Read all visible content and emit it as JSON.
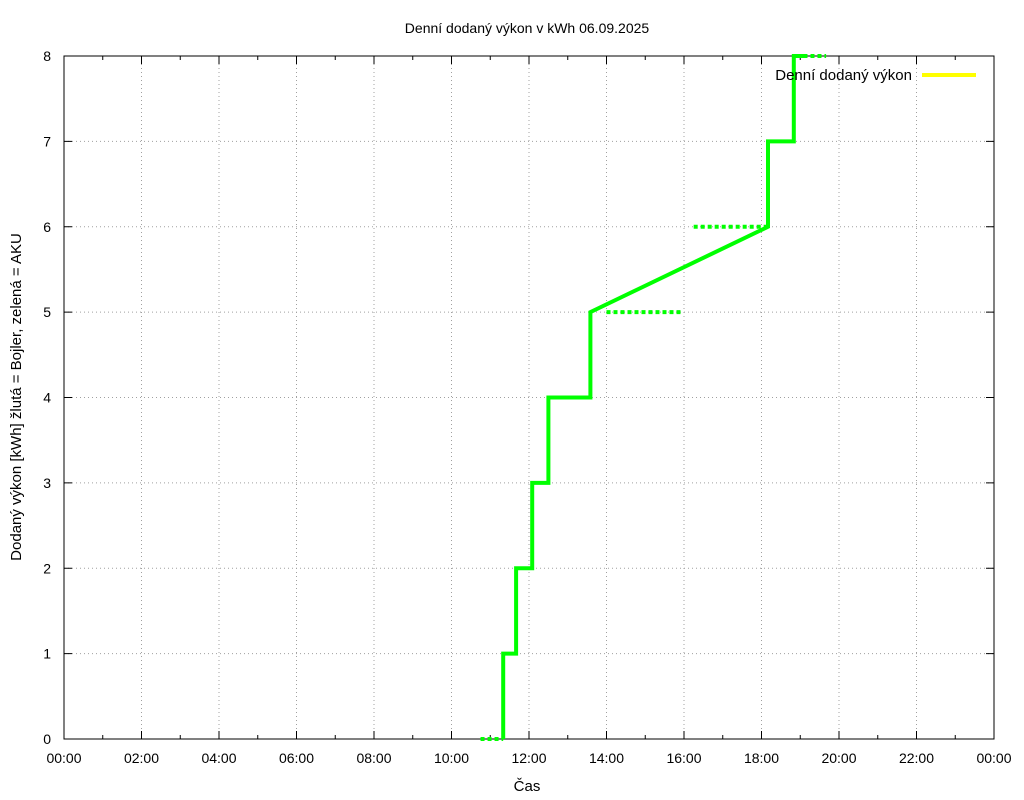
{
  "chart_data": {
    "type": "line",
    "title": "Denní dodaný výkon v kWh 06.09.2025",
    "xlabel": "Čas",
    "ylabel": "Dodaný výkon [kWh]  žlutá = Bojler, zelená = AKU",
    "xlim": [
      "00:00",
      "24:00"
    ],
    "ylim": [
      0,
      8
    ],
    "x_ticks": [
      "00:00",
      "02:00",
      "04:00",
      "06:00",
      "08:00",
      "10:00",
      "12:00",
      "14:00",
      "16:00",
      "18:00",
      "20:00",
      "22:00",
      "00:00"
    ],
    "y_ticks": [
      "0",
      "1",
      "2",
      "3",
      "4",
      "5",
      "6",
      "7",
      "8"
    ],
    "grid": true,
    "legend_position": "top-right",
    "legend": [
      {
        "name": "Denní dodaný výkon",
        "color": "#ffff00"
      }
    ],
    "series": [
      {
        "name": "Denní dodaný výkon",
        "color": "#ffff00",
        "points": []
      },
      {
        "color": "#00ff00",
        "solid_points": [
          [
            "11:20",
            0
          ],
          [
            "11:20",
            1
          ],
          [
            "11:40",
            1
          ],
          [
            "11:40",
            2
          ],
          [
            "12:05",
            2
          ],
          [
            "12:05",
            3
          ],
          [
            "12:30",
            3
          ],
          [
            "12:30",
            4
          ],
          [
            "12:50",
            4
          ],
          [
            "13:35",
            4
          ],
          [
            "13:35",
            5
          ],
          [
            "18:10",
            6
          ],
          [
            "18:10",
            7
          ],
          [
            "18:50",
            7
          ],
          [
            "18:50",
            8
          ],
          [
            "19:05",
            8
          ]
        ],
        "dotted_segments": [
          {
            "from": [
              "10:45",
              0
            ],
            "to": [
              "11:20",
              0
            ]
          },
          {
            "from": [
              "12:55",
              4
            ],
            "to": [
              "13:15",
              4
            ]
          },
          {
            "from": [
              "14:00",
              5
            ],
            "to": [
              "15:55",
              5
            ]
          },
          {
            "from": [
              "16:15",
              6
            ],
            "to": [
              "18:10",
              6
            ]
          },
          {
            "from": [
              "19:05",
              8
            ],
            "to": [
              "19:40",
              8
            ]
          }
        ]
      }
    ]
  }
}
